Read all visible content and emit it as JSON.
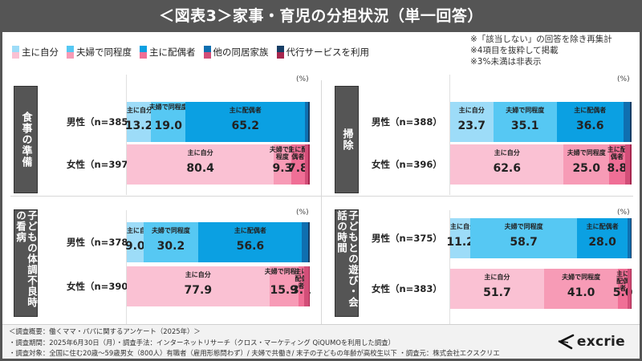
{
  "title": "＜図表3＞家事・育児の分担状況（単一回答）",
  "legend": [
    {
      "label": "主に自分",
      "male_color": "#9ddcf8",
      "female_color": "#fac1d3"
    },
    {
      "label": "夫婦で同程度",
      "male_color": "#56c8f3",
      "female_color": "#f79bb6"
    },
    {
      "label": "主に配偶者",
      "male_color": "#0ba0e2",
      "female_color": "#f06f96"
    },
    {
      "label": "他の同居家族",
      "male_color": "#0f6fb0",
      "female_color": "#d24e78"
    },
    {
      "label": "代行サービスを利用",
      "male_color": "#173e66",
      "female_color": "#a6264e"
    }
  ],
  "notes": [
    "※「該当しない」の回答を除き再集計",
    "※4項目を抜粋して掲載",
    "※3%未満は非表示"
  ],
  "unit": "(%)",
  "chart_data": [
    {
      "type": "bar",
      "stacked": true,
      "orientation": "horizontal",
      "title": "食事の準備",
      "categories": [
        "男性（n=385）",
        "女性（n=397）"
      ],
      "series": [
        {
          "name": "主に自分",
          "values": [
            13.2,
            80.4
          ]
        },
        {
          "name": "夫婦で同程度",
          "values": [
            19.0,
            9.3
          ]
        },
        {
          "name": "主に配偶者",
          "values": [
            65.2,
            7.8
          ]
        },
        {
          "name": "他の同居家族",
          "values": [
            1.8,
            1.8
          ]
        },
        {
          "name": "代行サービスを利用",
          "values": [
            0.8,
            0.7
          ]
        }
      ],
      "xlim": [
        0,
        100
      ],
      "unit": "(%)"
    },
    {
      "type": "bar",
      "stacked": true,
      "orientation": "horizontal",
      "title": "掃除",
      "categories": [
        "男性（n=388）",
        "女性（n=396）"
      ],
      "series": [
        {
          "name": "主に自分",
          "values": [
            23.7,
            62.6
          ]
        },
        {
          "name": "夫婦で同程度",
          "values": [
            35.1,
            25.0
          ]
        },
        {
          "name": "主に配偶者",
          "values": [
            36.6,
            8.8
          ]
        },
        {
          "name": "他の同居家族",
          "values": [
            3.8,
            2.8
          ]
        },
        {
          "name": "代行サービスを利用",
          "values": [
            0.8,
            0.8
          ]
        }
      ],
      "xlim": [
        0,
        100
      ],
      "unit": "(%)"
    },
    {
      "type": "bar",
      "stacked": true,
      "orientation": "horizontal",
      "title": "子どもの体調不良時の看病",
      "categories": [
        "男性（n=378）",
        "女性（n=390）"
      ],
      "series": [
        {
          "name": "主に自分",
          "values": [
            9.0,
            77.9
          ]
        },
        {
          "name": "夫婦で同程度",
          "values": [
            30.2,
            15.9
          ]
        },
        {
          "name": "主に配偶者",
          "values": [
            56.6,
            3.1
          ]
        },
        {
          "name": "他の同居家族",
          "values": [
            3.4,
            2.6
          ]
        },
        {
          "name": "代行サービスを利用",
          "values": [
            0.8,
            0.5
          ]
        }
      ],
      "xlim": [
        0,
        100
      ],
      "unit": "(%)"
    },
    {
      "type": "bar",
      "stacked": true,
      "orientation": "horizontal",
      "title": "子どもとの遊び・会話の時間",
      "categories": [
        "男性（n=375）",
        "女性（n=383）"
      ],
      "series": [
        {
          "name": "主に自分",
          "values": [
            11.2,
            51.7
          ]
        },
        {
          "name": "夫婦で同程度",
          "values": [
            58.7,
            41.0
          ]
        },
        {
          "name": "主に配偶者",
          "values": [
            28.0,
            5.0
          ]
        },
        {
          "name": "他の同居家族",
          "values": [
            1.6,
            1.8
          ]
        },
        {
          "name": "代行サービスを利用",
          "values": [
            0.5,
            0.5
          ]
        }
      ],
      "xlim": [
        0,
        100
      ],
      "unit": "(%)"
    }
  ],
  "panels": [
    {
      "category": "食事の準備",
      "rows": [
        {
          "label": "男性（n=385）",
          "gender": "male",
          "segments": [
            {
              "name": "主に自分",
              "value": "13.2",
              "pct": 13.2
            },
            {
              "name": "夫婦で同程度",
              "value": "19.0",
              "pct": 19.0
            },
            {
              "name": "主に配偶者",
              "value": "65.2",
              "pct": 65.2
            },
            {
              "name": "",
              "value": "",
              "pct": 1.8
            },
            {
              "name": "",
              "value": "",
              "pct": 0.8
            }
          ]
        },
        {
          "label": "女性（n=397）",
          "gender": "female",
          "segments": [
            {
              "name": "主に自分",
              "value": "80.4",
              "pct": 80.4
            },
            {
              "name": "夫婦で同程度",
              "value": "9.3",
              "pct": 9.3
            },
            {
              "name": "主に配偶者",
              "value": "7.8",
              "pct": 7.8
            },
            {
              "name": "",
              "value": "",
              "pct": 1.8
            },
            {
              "name": "",
              "value": "",
              "pct": 0.7
            }
          ]
        }
      ]
    },
    {
      "category": "掃除",
      "rows": [
        {
          "label": "男性（n=388）",
          "gender": "male",
          "segments": [
            {
              "name": "主に自分",
              "value": "23.7",
              "pct": 23.7
            },
            {
              "name": "夫婦で同程度",
              "value": "35.1",
              "pct": 35.1
            },
            {
              "name": "主に配偶者",
              "value": "36.6",
              "pct": 36.6
            },
            {
              "name": "",
              "value": "",
              "pct": 3.8
            },
            {
              "name": "",
              "value": "",
              "pct": 0.8
            }
          ]
        },
        {
          "label": "女性（n=396）",
          "gender": "female",
          "segments": [
            {
              "name": "主に自分",
              "value": "62.6",
              "pct": 62.6
            },
            {
              "name": "夫婦で同程度",
              "value": "25.0",
              "pct": 25.0
            },
            {
              "name": "主に配偶者",
              "value": "8.8",
              "pct": 8.8
            },
            {
              "name": "",
              "value": "",
              "pct": 2.8
            },
            {
              "name": "",
              "value": "",
              "pct": 0.8
            }
          ]
        }
      ]
    },
    {
      "category": "子どもの体調不良時の看病",
      "rows": [
        {
          "label": "男性（n=378）",
          "gender": "male",
          "segments": [
            {
              "name": "主に自分",
              "value": "9.0",
              "pct": 9.0
            },
            {
              "name": "夫婦で同程度",
              "value": "30.2",
              "pct": 30.2
            },
            {
              "name": "主に配偶者",
              "value": "56.6",
              "pct": 56.6
            },
            {
              "name": "",
              "value": "",
              "pct": 3.4
            },
            {
              "name": "",
              "value": "",
              "pct": 0.8
            }
          ]
        },
        {
          "label": "女性（n=390）",
          "gender": "female",
          "segments": [
            {
              "name": "主に自分",
              "value": "77.9",
              "pct": 77.9
            },
            {
              "name": "夫婦で同程度",
              "value": "15.9",
              "pct": 15.9
            },
            {
              "name": "主に配偶者",
              "value": "3.1",
              "pct": 3.1
            },
            {
              "name": "",
              "value": "",
              "pct": 2.6
            },
            {
              "name": "",
              "value": "",
              "pct": 0.5
            }
          ]
        }
      ]
    },
    {
      "category": "子どもとの遊び・会話の時間",
      "rows": [
        {
          "label": "男性（n=375）",
          "gender": "male",
          "segments": [
            {
              "name": "主に自分",
              "value": "11.2",
              "pct": 11.2
            },
            {
              "name": "夫婦で同程度",
              "value": "58.7",
              "pct": 58.7
            },
            {
              "name": "主に配偶者",
              "value": "28.0",
              "pct": 28.0
            },
            {
              "name": "",
              "value": "",
              "pct": 1.6
            },
            {
              "name": "",
              "value": "",
              "pct": 0.5
            }
          ]
        },
        {
          "label": "女性（n=383）",
          "gender": "female",
          "segments": [
            {
              "name": "主に自分",
              "value": "51.7",
              "pct": 51.7
            },
            {
              "name": "夫婦で同程度",
              "value": "41.0",
              "pct": 41.0
            },
            {
              "name": "主に配偶者",
              "value": "5.0",
              "pct": 5.0
            },
            {
              "name": "",
              "value": "",
              "pct": 1.8
            },
            {
              "name": "",
              "value": "",
              "pct": 0.5
            }
          ]
        }
      ]
    }
  ],
  "footer": {
    "survey_lines": [
      "＜調査概要：働くママ・パパに関するアンケート（2025年）＞",
      "・調査期間：2025年6月30日（月）・調査手法：インターネットリサーチ（クロス・マーケティング QiQUMOを利用した調査）",
      "・調査対象：全国に住む20歳～59歳男女（800人）有職者（雇用形態問わず）/ 夫婦で共働き/ 末子の子どもの年齢が高校生以下 ・調査元：株式会社エクスクリエ"
    ],
    "logo_text": "excrie"
  }
}
